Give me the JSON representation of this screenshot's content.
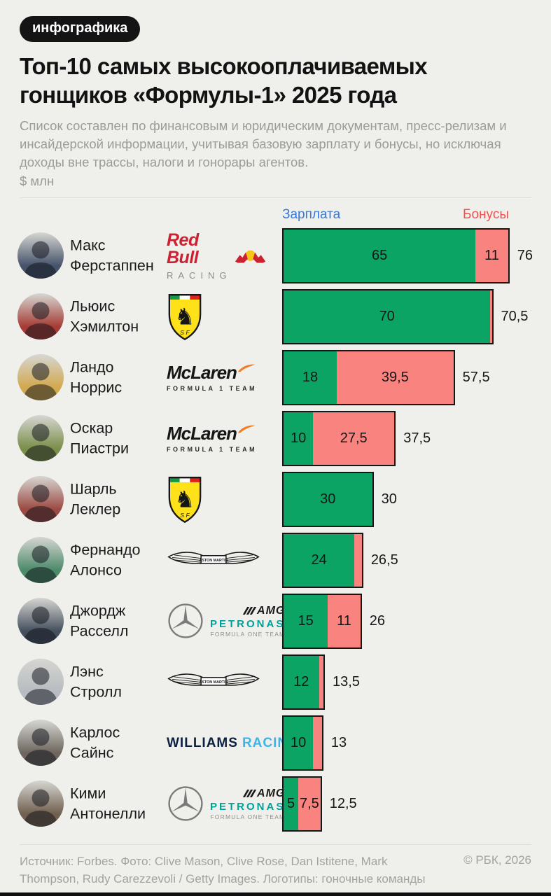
{
  "badge": "инфографика",
  "title_lines": [
    "Топ-10 самых высокооплачиваемых",
    "гонщиков «Формулы-1» 2025 года"
  ],
  "subtitle": "Список составлен по финансовым и юридическим документам, пресс-релизам и инсайдерской информации, учитывая базовую зарплату и бонусы, но исключая доходы вне трассы, налоги и гонорары агентов.",
  "unit": "$ млн",
  "legend": {
    "salary": {
      "label": "Зарплата",
      "color": "#3778da"
    },
    "bonus": {
      "label": "Бонусы",
      "color": "#f1504b"
    }
  },
  "colors": {
    "salary_bar": "#0ca464",
    "bonus_bar": "#f9837e",
    "bar_border": "#161616",
    "background": "#efefec"
  },
  "chart_data": {
    "type": "bar",
    "orientation": "horizontal",
    "stacked": true,
    "title": "Топ-10 самых высокооплачиваемых гонщиков «Формулы-1» 2025 года",
    "unit": "$ млн",
    "legend_position": "top",
    "categories": [
      "Макс Ферстаппен",
      "Льюис Хэмилтон",
      "Ландо Норрис",
      "Оскар Пиастри",
      "Шарль Леклер",
      "Фернандо Алонсо",
      "Джордж Расселл",
      "Лэнс Стролл",
      "Карлос Сайнс",
      "Кими Антонелли"
    ],
    "teams": [
      "Red Bull Racing",
      "Ferrari",
      "McLaren",
      "McLaren",
      "Ferrari",
      "Aston Martin",
      "Mercedes-AMG Petronas",
      "Aston Martin",
      "Williams Racing",
      "Mercedes-AMG Petronas"
    ],
    "series": [
      {
        "name": "Зарплата",
        "color": "#0ca464",
        "values": [
          65,
          70,
          18,
          10,
          30,
          24,
          15,
          12,
          10,
          5
        ]
      },
      {
        "name": "Бонусы",
        "color": "#f9837e",
        "values": [
          11,
          0.5,
          39.5,
          27.5,
          0,
          2.5,
          11,
          1.5,
          3,
          7.5
        ]
      }
    ],
    "totals": [
      76,
      70.5,
      57.5,
      37.5,
      30,
      26.5,
      26,
      13.5,
      13,
      12.5
    ]
  },
  "rows": [
    {
      "name_line1": "Макс",
      "name_line2": "Ферстаппен",
      "team": "red_bull",
      "salary": 65,
      "bonus": 11,
      "salary_label": "65",
      "bonus_label": "11",
      "total_label": "76",
      "avatar_color": "#46536b"
    },
    {
      "name_line1": "Льюис",
      "name_line2": "Хэмилтон",
      "team": "ferrari",
      "salary": 70,
      "bonus": 0.5,
      "salary_label": "70",
      "bonus_label": "",
      "total_label": "70,5",
      "avatar_color": "#a63c35"
    },
    {
      "name_line1": "Ландо",
      "name_line2": "Норрис",
      "team": "mclaren",
      "salary": 18,
      "bonus": 39.5,
      "salary_label": "18",
      "bonus_label": "39,5",
      "total_label": "57,5",
      "avatar_color": "#d2a94e"
    },
    {
      "name_line1": "Оскар",
      "name_line2": "Пиастри",
      "team": "mclaren",
      "salary": 10,
      "bonus": 27.5,
      "salary_label": "10",
      "bonus_label": "27,5",
      "total_label": "37,5",
      "avatar_color": "#7b8f4a"
    },
    {
      "name_line1": "Шарль",
      "name_line2": "Леклер",
      "team": "ferrari",
      "salary": 30,
      "bonus": 0,
      "salary_label": "30",
      "bonus_label": "",
      "total_label": "30",
      "avatar_color": "#9c4a42"
    },
    {
      "name_line1": "Фернандо",
      "name_line2": "Алонсо",
      "team": "aston_martin",
      "salary": 24,
      "bonus": 2.5,
      "salary_label": "24",
      "bonus_label": "",
      "total_label": "26,5",
      "avatar_color": "#4c8a6a"
    },
    {
      "name_line1": "Джордж",
      "name_line2": "Расселл",
      "team": "mercedes",
      "salary": 15,
      "bonus": 11,
      "salary_label": "15",
      "bonus_label": "11",
      "total_label": "26",
      "avatar_color": "#45505e"
    },
    {
      "name_line1": "Лэнс",
      "name_line2": "Стролл",
      "team": "aston_martin",
      "salary": 12,
      "bonus": 1.5,
      "salary_label": "12",
      "bonus_label": "",
      "total_label": "13,5",
      "avatar_color": "#b7bcc0"
    },
    {
      "name_line1": "Карлос",
      "name_line2": "Сайнс",
      "team": "williams",
      "salary": 10,
      "bonus": 3,
      "salary_label": "10",
      "bonus_label": "",
      "total_label": "13",
      "avatar_color": "#6e665e"
    },
    {
      "name_line1": "Кими",
      "name_line2": "Антонелли",
      "team": "mercedes",
      "salary": 5,
      "bonus": 7.5,
      "salary_label": "5",
      "bonus_label": "7,5",
      "total_label": "12,5",
      "avatar_color": "#71604f"
    }
  ],
  "logos": {
    "red_bull": {
      "line1": "Red Bull",
      "line2": "RACING"
    },
    "ferrari": {
      "initials": "S F"
    },
    "mclaren": {
      "name": "McLaren",
      "sub": "FORMULA 1 TEAM"
    },
    "aston_martin": {
      "name": "ASTON MARTIN"
    },
    "mercedes": {
      "amg": "AMG",
      "petronas": "PETRONAS",
      "sub": "FORMULA ONE TEAM"
    },
    "williams": {
      "name": "WILLIAMS",
      "sub": "RACING"
    }
  },
  "footer": {
    "left": "Источник: Forbes. Фото: Clive Mason, Clive Rose, Dan Istitene, Mark Thompson, Rudy Carezzevoli / Getty Images. Логотипы: гоночные команды",
    "right": "© РБК, 2026"
  }
}
